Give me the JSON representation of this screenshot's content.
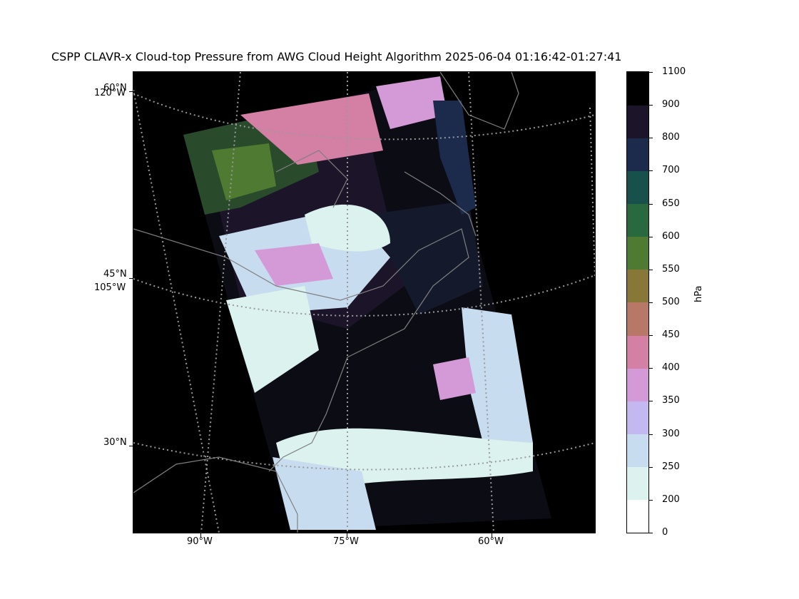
{
  "title": "CSPP CLAVR-x Cloud-top Pressure from AWG Cloud Height Algorithm 2025-06-04 01:16:42-01:27:41",
  "map": {
    "background_color": "#000000",
    "coastline_color": "#808080",
    "gridline_color": "#9a9a9a",
    "lon_labels": [
      {
        "text": "90°W"
      },
      {
        "text": "75°W"
      },
      {
        "text": "60°W"
      }
    ],
    "lat_labels": [
      {
        "text": "60°N"
      },
      {
        "text": "45°N"
      },
      {
        "text": "30°N"
      }
    ],
    "lon_side_labels": [
      {
        "text": "120°W"
      },
      {
        "text": "105°W"
      }
    ]
  },
  "colorbar": {
    "unit": "hPa",
    "ticks": [
      "0",
      "200",
      "250",
      "300",
      "350",
      "400",
      "450",
      "500",
      "550",
      "600",
      "650",
      "700",
      "800",
      "900",
      "1100"
    ],
    "colors": [
      "#ffffff",
      "#dcf2ee",
      "#c8dcf0",
      "#c4b8f0",
      "#d49ad8",
      "#d47fa4",
      "#b87868",
      "#887838",
      "#4e7a32",
      "#286a3e",
      "#18504c",
      "#1c2a4c",
      "#1c1428",
      "#000000"
    ]
  }
}
